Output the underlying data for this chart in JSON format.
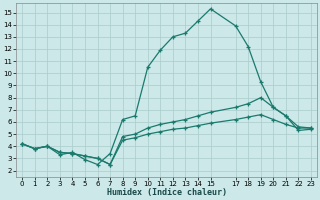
{
  "title": "",
  "xlabel": "Humidex (Indice chaleur)",
  "bg_color": "#cce8e8",
  "grid_color": "#aacccc",
  "line_color": "#1a7a6e",
  "xlim": [
    -0.5,
    23.5
  ],
  "ylim": [
    1.5,
    15.8
  ],
  "xticks": [
    0,
    1,
    2,
    3,
    4,
    5,
    6,
    7,
    8,
    9,
    10,
    11,
    12,
    13,
    14,
    15,
    17,
    18,
    19,
    20,
    21,
    22,
    23
  ],
  "yticks": [
    2,
    3,
    4,
    5,
    6,
    7,
    8,
    9,
    10,
    11,
    12,
    13,
    14,
    15
  ],
  "line1_x": [
    0,
    1,
    2,
    3,
    4,
    5,
    6,
    7,
    8,
    9,
    10,
    11,
    12,
    13,
    14,
    15,
    17,
    18,
    19,
    20,
    21,
    22,
    23
  ],
  "line1_y": [
    4.2,
    3.8,
    4.0,
    3.3,
    3.5,
    2.9,
    2.5,
    3.4,
    6.2,
    6.5,
    10.5,
    11.9,
    13.0,
    13.3,
    14.3,
    15.3,
    13.9,
    12.2,
    9.3,
    7.2,
    6.5,
    5.3,
    5.4
  ],
  "line2_x": [
    0,
    1,
    2,
    3,
    4,
    5,
    6,
    7,
    8,
    9,
    10,
    11,
    12,
    13,
    14,
    15,
    17,
    18,
    19,
    20,
    21,
    22,
    23
  ],
  "line2_y": [
    4.2,
    3.8,
    4.0,
    3.5,
    3.4,
    3.2,
    3.0,
    2.5,
    4.8,
    5.0,
    5.5,
    5.8,
    6.0,
    6.2,
    6.5,
    6.8,
    7.2,
    7.5,
    8.0,
    7.2,
    6.5,
    5.6,
    5.5
  ],
  "line3_x": [
    0,
    1,
    2,
    3,
    4,
    5,
    6,
    7,
    8,
    9,
    10,
    11,
    12,
    13,
    14,
    15,
    17,
    18,
    19,
    20,
    21,
    22,
    23
  ],
  "line3_y": [
    4.2,
    3.8,
    4.0,
    3.5,
    3.4,
    3.2,
    3.0,
    2.5,
    4.5,
    4.7,
    5.0,
    5.2,
    5.4,
    5.5,
    5.7,
    5.9,
    6.2,
    6.4,
    6.6,
    6.2,
    5.8,
    5.5,
    5.5
  ]
}
